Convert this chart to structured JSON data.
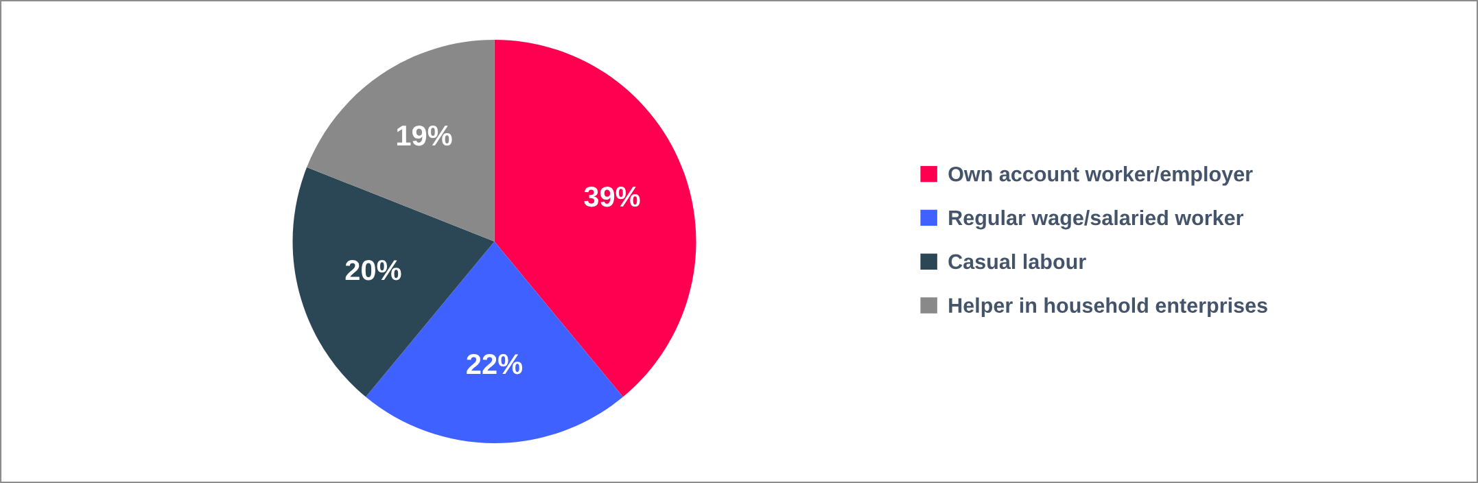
{
  "chart_data": {
    "type": "pie",
    "categories": [
      "Own account worker/employer",
      "Regular wage/salaried worker",
      "Casual labour",
      "Helper in household enterprises"
    ],
    "values": [
      39,
      22,
      20,
      19
    ],
    "value_labels": [
      "39%",
      "22%",
      "20%",
      "19%"
    ],
    "colors": [
      "#ff0050",
      "#3f61ff",
      "#2b4655",
      "#898989"
    ],
    "legend": "right"
  }
}
